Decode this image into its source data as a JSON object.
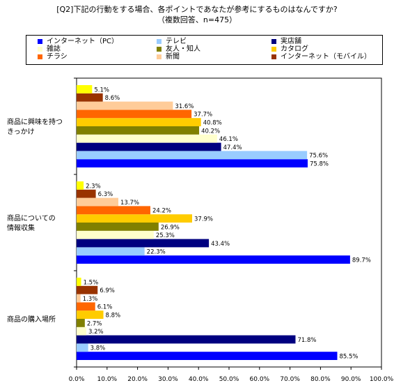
{
  "title": {
    "line1": "[Q2]下記の行動をする場合、各ポイントであなたが参考にするものはなんですか?",
    "line2": "（複数回答、n=475）"
  },
  "chart_data": {
    "type": "bar",
    "orientation": "horizontal",
    "xlim": [
      0,
      100
    ],
    "xticks": [
      "0.0%",
      "10.0%",
      "20.0%",
      "30.0%",
      "40.0%",
      "50.0%",
      "60.0%",
      "70.0%",
      "80.0%",
      "90.0%",
      "100.0%"
    ],
    "categories": [
      "商品に興味を持つきっかけ",
      "商品についての情報収集",
      "商品の購入場所"
    ],
    "category_lines": [
      [
        "商品に興味を持つ",
        "きっかけ"
      ],
      [
        "商品についての",
        "情報収集"
      ],
      [
        "商品の購入場所"
      ]
    ],
    "legend_position": "top",
    "grid": false,
    "series": [
      {
        "name": "インターネット（PC）",
        "color": "#0000ff",
        "values": [
          75.8,
          89.7,
          85.5
        ]
      },
      {
        "name": "テレビ",
        "color": "#99ccff",
        "values": [
          75.6,
          22.3,
          3.8
        ]
      },
      {
        "name": "実店舗",
        "color": "#000080",
        "values": [
          47.4,
          43.4,
          71.8
        ]
      },
      {
        "name": "雑誌",
        "color": "#ffffcc",
        "values": [
          46.1,
          25.3,
          3.2
        ]
      },
      {
        "name": "友人・知人",
        "color": "#808000",
        "values": [
          40.2,
          26.9,
          2.7
        ]
      },
      {
        "name": "カタログ",
        "color": "#ffcc00",
        "values": [
          40.8,
          37.9,
          8.8
        ]
      },
      {
        "name": "チラシ",
        "color": "#ff6600",
        "values": [
          37.7,
          24.2,
          6.1
        ]
      },
      {
        "name": "新聞",
        "color": "#ffcc99",
        "values": [
          31.6,
          13.7,
          1.3
        ]
      },
      {
        "name": "インターネット（モバイル）",
        "color": "#993300",
        "values": [
          8.6,
          6.3,
          6.9
        ]
      },
      {
        "name": "",
        "color": "#ffff00",
        "values": [
          5.1,
          2.3,
          1.5
        ]
      }
    ]
  }
}
